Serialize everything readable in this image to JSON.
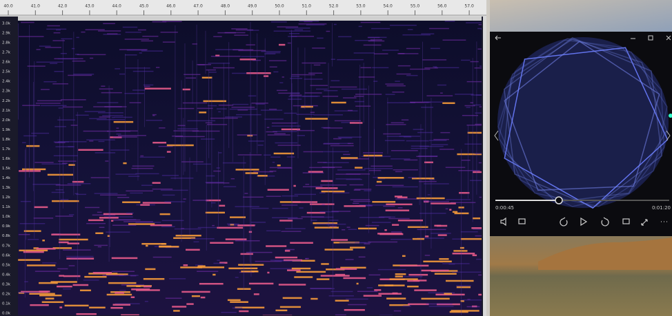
{
  "ruler": {
    "labels": [
      "40.0",
      "41.0",
      "42.0",
      "43.0",
      "44.0",
      "45.0",
      "46.0",
      "47.0",
      "48.0",
      "49.0",
      "50.0",
      "51.0",
      "52.0",
      "53.0",
      "54.0",
      "55.0",
      "56.0",
      "57.0"
    ]
  },
  "frequency_axis": {
    "labels": [
      "3.0k",
      "2.9k",
      "2.8k",
      "2.7k",
      "2.6k",
      "2.5k",
      "2.4k",
      "2.3k",
      "2.2k",
      "2.1k",
      "2.0k",
      "1.9k",
      "1.8k",
      "1.7k",
      "1.6k",
      "1.5k",
      "1.4k",
      "1.3k",
      "1.2k",
      "1.1k",
      "1.0k",
      "0.9k",
      "0.8k",
      "0.7k",
      "0.6k",
      "0.5k",
      "0.4k",
      "0.3k",
      "0.2k",
      "0.1k",
      "0.0k"
    ]
  },
  "player": {
    "elapsed": "0:00:45",
    "total": "0:01:20"
  }
}
